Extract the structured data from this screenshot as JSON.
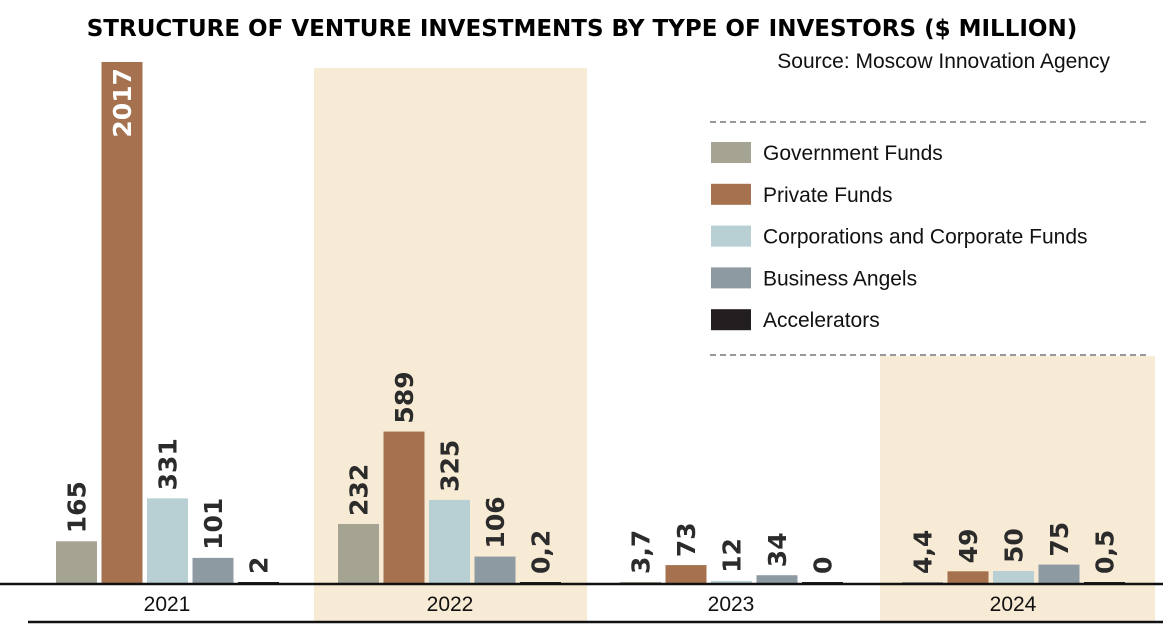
{
  "chart_data": {
    "type": "bar",
    "title": "STRUCTURE OF VENTURE INVESTMENTS BY TYPE OF INVESTORS ($ MILLION)",
    "source": "Source: Moscow Innovation Agency",
    "categories": [
      "2021",
      "2022",
      "2023",
      "2024"
    ],
    "highlighted_categories": [
      "2022",
      "2024"
    ],
    "highlight_color": "#f8ebd6",
    "series": [
      {
        "name": "Government Funds",
        "color": "#a5a392",
        "values": [
          165,
          232,
          3.7,
          4.4
        ],
        "labels": [
          "165",
          "232",
          "3,7",
          "4,4"
        ]
      },
      {
        "name": "Private Funds",
        "color": "#a5714e",
        "values": [
          2017,
          589,
          73,
          49
        ],
        "labels": [
          "2017",
          "589",
          "73",
          "49"
        ]
      },
      {
        "name": "Corporations and Corporate Funds",
        "color": "#b8cfd4",
        "values": [
          331,
          325,
          12,
          50
        ],
        "labels": [
          "331",
          "325",
          "12",
          "50"
        ]
      },
      {
        "name": "Business Angels",
        "color": "#8d9aa1",
        "values": [
          101,
          106,
          34,
          75
        ],
        "labels": [
          "101",
          "106",
          "34",
          "75"
        ]
      },
      {
        "name": "Accelerators",
        "color": "#231f20",
        "values": [
          2,
          0.2,
          0,
          0.5
        ],
        "labels": [
          "2",
          "0,2",
          "0",
          "0,5"
        ]
      }
    ],
    "legend_position": "top-right",
    "grid": false
  }
}
